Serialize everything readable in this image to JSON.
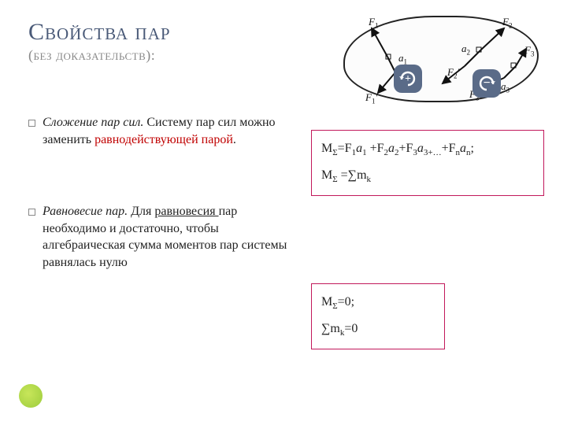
{
  "title": {
    "main": "Свойства пар",
    "sub": "(без доказательств):"
  },
  "bullets": [
    {
      "lead": "Сложение пар сил.",
      "body_before": " Систему пар сил можно заменить ",
      "highlight": "равнодействующей парой",
      "body_after": "."
    },
    {
      "lead": "Равновесие пар.",
      "body_before": " Для ",
      "underline": "равновесия ",
      "body_after": "пар необходимо и достаточно, чтобы алгебраическая сумма моментов пар системы равнялась нулю"
    }
  ],
  "figure": {
    "badge_plus": "+",
    "badge_minus": "−",
    "labels": {
      "F1": "F",
      "F1sub": "1",
      "a1": "a",
      "a1sub": "1",
      "F1p": "F",
      "F1psub": "1",
      "F2": "F",
      "F2sub": "2",
      "a2": "a",
      "a2sub": "2",
      "F2p": "F",
      "F2psub": "2",
      "F3": "F",
      "F3sub": "3",
      "a3": "a",
      "a3sub": "3",
      "F3p": "F",
      "F3psub": "3"
    }
  },
  "formula1": {
    "line1_html": "M<sub>Σ</sub>=F<sub>1</sub><i>a</i><sub>1</sub> +F<sub>2</sub><i>a</i><sub>2</sub>+F<sub>3</sub><i>a</i><sub>3+…</sub>+F<sub>n</sub><i>a</i><sub>n</sub>;",
    "line2_html": "M<sub>Σ</sub> =∑m<sub>k</sub>"
  },
  "formula2": {
    "line1_html": "M<sub>Σ</sub>=0;",
    "line2_html": "∑m<sub>k</sub>=0"
  },
  "style": {
    "title_color": "#4a5a78",
    "subtitle_color": "#888888",
    "red": "#c00000",
    "box_border": "#c2185b",
    "badge_bg": "#5a6b88",
    "accent_dot": "#9ccc3c"
  }
}
